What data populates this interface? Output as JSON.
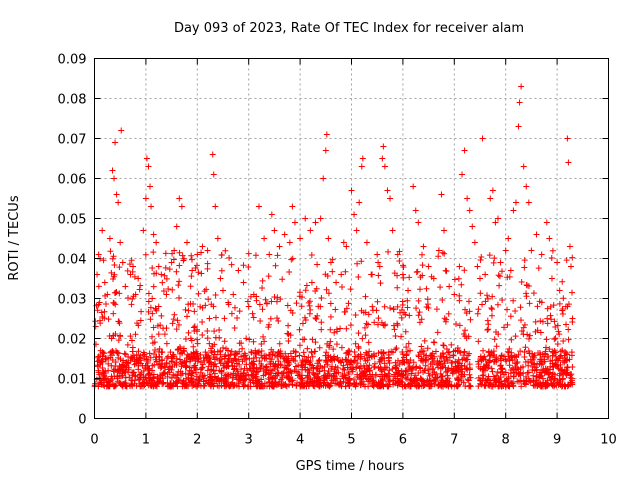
{
  "chart_data": {
    "type": "scatter",
    "title": "Day 093 of 2023, Rate Of TEC Index for receiver alam",
    "xlabel": "GPS time / hours",
    "ylabel": "ROTI / TECUs",
    "xlim": [
      0,
      10
    ],
    "ylim": [
      0,
      0.09
    ],
    "x_ticks": [
      "0",
      "1",
      "2",
      "3",
      "4",
      "5",
      "6",
      "7",
      "8",
      "9",
      "10"
    ],
    "y_ticks": [
      "0",
      "0.01",
      "0.02",
      "0.03",
      "0.04",
      "0.05",
      "0.06",
      "0.07",
      "0.08",
      "0.09"
    ],
    "grid": true,
    "marker": "plus",
    "color": "#ff0000",
    "series": [
      {
        "points": [
          [
            0.05,
            0.036
          ],
          [
            0.08,
            0.041
          ],
          [
            0.1,
            0.029
          ],
          [
            0.15,
            0.047
          ],
          [
            0.2,
            0.034
          ],
          [
            0.25,
            0.031
          ],
          [
            0.3,
            0.045
          ],
          [
            0.35,
            0.062
          ],
          [
            0.38,
            0.06
          ],
          [
            0.4,
            0.069
          ],
          [
            0.43,
            0.056
          ],
          [
            0.46,
            0.054
          ],
          [
            0.5,
            0.044
          ],
          [
            0.52,
            0.072
          ],
          [
            0.55,
            0.039
          ],
          [
            0.6,
            0.033
          ],
          [
            0.7,
            0.036
          ],
          [
            0.75,
            0.038
          ],
          [
            0.8,
            0.031
          ],
          [
            0.85,
            0.035
          ],
          [
            0.95,
            0.047
          ],
          [
            1.0,
            0.055
          ],
          [
            1.02,
            0.065
          ],
          [
            1.05,
            0.063
          ],
          [
            1.08,
            0.058
          ],
          [
            1.1,
            0.053
          ],
          [
            1.15,
            0.046
          ],
          [
            1.2,
            0.044
          ],
          [
            1.25,
            0.038
          ],
          [
            1.3,
            0.036
          ],
          [
            1.4,
            0.031
          ],
          [
            1.5,
            0.039
          ],
          [
            1.55,
            0.042
          ],
          [
            1.6,
            0.048
          ],
          [
            1.65,
            0.055
          ],
          [
            1.7,
            0.053
          ],
          [
            1.8,
            0.044
          ],
          [
            1.9,
            0.037
          ],
          [
            2.0,
            0.041
          ],
          [
            2.1,
            0.043
          ],
          [
            2.2,
            0.042
          ],
          [
            2.3,
            0.066
          ],
          [
            2.32,
            0.061
          ],
          [
            2.35,
            0.053
          ],
          [
            2.4,
            0.045
          ],
          [
            2.45,
            0.035
          ],
          [
            2.5,
            0.032
          ],
          [
            2.6,
            0.029
          ],
          [
            2.7,
            0.031
          ],
          [
            2.8,
            0.037
          ],
          [
            2.9,
            0.034
          ],
          [
            3.0,
            0.028
          ],
          [
            3.1,
            0.031
          ],
          [
            3.2,
            0.053
          ],
          [
            3.3,
            0.045
          ],
          [
            3.4,
            0.041
          ],
          [
            3.45,
            0.051
          ],
          [
            3.5,
            0.047
          ],
          [
            3.6,
            0.043
          ],
          [
            3.7,
            0.046
          ],
          [
            3.8,
            0.044
          ],
          [
            3.85,
            0.053
          ],
          [
            3.9,
            0.049
          ],
          [
            4.0,
            0.045
          ],
          [
            4.1,
            0.05
          ],
          [
            4.2,
            0.047
          ],
          [
            4.3,
            0.049
          ],
          [
            4.4,
            0.05
          ],
          [
            4.45,
            0.06
          ],
          [
            4.5,
            0.067
          ],
          [
            4.52,
            0.071
          ],
          [
            4.55,
            0.045
          ],
          [
            4.6,
            0.039
          ],
          [
            4.7,
            0.034
          ],
          [
            4.8,
            0.036
          ],
          [
            4.85,
            0.044
          ],
          [
            4.9,
            0.043
          ],
          [
            5.0,
            0.057
          ],
          [
            5.05,
            0.051
          ],
          [
            5.1,
            0.047
          ],
          [
            5.15,
            0.054
          ],
          [
            5.2,
            0.063
          ],
          [
            5.22,
            0.065
          ],
          [
            5.3,
            0.044
          ],
          [
            5.4,
            0.036
          ],
          [
            5.5,
            0.041
          ],
          [
            5.55,
            0.038
          ],
          [
            5.6,
            0.065
          ],
          [
            5.62,
            0.068
          ],
          [
            5.65,
            0.063
          ],
          [
            5.7,
            0.057
          ],
          [
            5.75,
            0.055
          ],
          [
            5.8,
            0.047
          ],
          [
            5.9,
            0.041
          ],
          [
            6.0,
            0.036
          ],
          [
            6.1,
            0.032
          ],
          [
            6.2,
            0.058
          ],
          [
            6.25,
            0.052
          ],
          [
            6.3,
            0.049
          ],
          [
            6.4,
            0.043
          ],
          [
            6.5,
            0.038
          ],
          [
            6.6,
            0.035
          ],
          [
            6.7,
            0.042
          ],
          [
            6.75,
            0.056
          ],
          [
            6.8,
            0.047
          ],
          [
            6.9,
            0.033
          ],
          [
            7.0,
            0.031
          ],
          [
            7.1,
            0.038
          ],
          [
            7.15,
            0.061
          ],
          [
            7.2,
            0.067
          ],
          [
            7.25,
            0.055
          ],
          [
            7.3,
            0.052
          ],
          [
            7.35,
            0.048
          ],
          [
            7.4,
            0.044
          ],
          [
            7.45,
            0.038
          ],
          [
            7.5,
            0.035
          ],
          [
            7.55,
            0.07
          ],
          [
            7.6,
            0.036
          ],
          [
            7.7,
            0.055
          ],
          [
            7.75,
            0.057
          ],
          [
            7.8,
            0.049
          ],
          [
            7.85,
            0.05
          ],
          [
            7.9,
            0.039
          ],
          [
            8.0,
            0.042
          ],
          [
            8.05,
            0.045
          ],
          [
            8.1,
            0.037
          ],
          [
            8.15,
            0.052
          ],
          [
            8.2,
            0.054
          ],
          [
            8.25,
            0.073
          ],
          [
            8.27,
            0.079
          ],
          [
            8.3,
            0.083
          ],
          [
            8.35,
            0.063
          ],
          [
            8.4,
            0.058
          ],
          [
            8.45,
            0.054
          ],
          [
            8.5,
            0.042
          ],
          [
            8.6,
            0.046
          ],
          [
            8.7,
            0.041
          ],
          [
            8.8,
            0.049
          ],
          [
            8.85,
            0.045
          ],
          [
            8.9,
            0.035
          ],
          [
            9.0,
            0.039
          ],
          [
            9.05,
            0.032
          ],
          [
            9.1,
            0.027
          ],
          [
            9.2,
            0.07
          ],
          [
            9.22,
            0.064
          ],
          [
            9.25,
            0.043
          ],
          [
            9.27,
            0.038
          ],
          [
            9.3,
            0.025
          ]
        ],
        "baseline_density": {
          "x_range": [
            0,
            9.3
          ],
          "y_typical": [
            0.005,
            0.03
          ],
          "gaps": [
            [
              7.32,
              7.45
            ]
          ]
        }
      }
    ]
  }
}
